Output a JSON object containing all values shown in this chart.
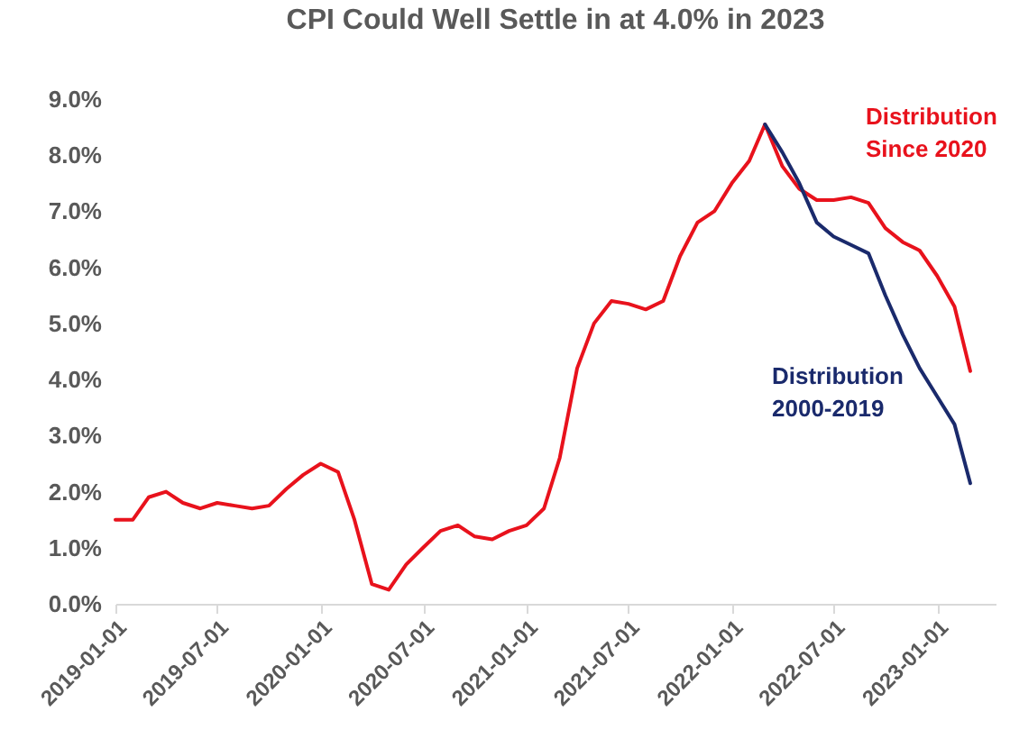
{
  "chart_data": {
    "type": "line",
    "title": "CPI Could Well Settle in at 4.0% in 2023",
    "series": [
      {
        "name": "Distribution Since 2020",
        "color": "#e8121c",
        "x": [
          "2019-01",
          "2019-02",
          "2019-03",
          "2019-04",
          "2019-05",
          "2019-06",
          "2019-07",
          "2019-08",
          "2019-09",
          "2019-10",
          "2019-11",
          "2019-12",
          "2020-01",
          "2020-02",
          "2020-03",
          "2020-04",
          "2020-05",
          "2020-06",
          "2020-07",
          "2020-08",
          "2020-09",
          "2020-10",
          "2020-11",
          "2020-12",
          "2021-01",
          "2021-02",
          "2021-03",
          "2021-04",
          "2021-05",
          "2021-06",
          "2021-07",
          "2021-08",
          "2021-09",
          "2021-10",
          "2021-11",
          "2021-12",
          "2022-01",
          "2022-02",
          "2022-03",
          "2022-04",
          "2022-05",
          "2022-06",
          "2022-07",
          "2022-08",
          "2022-09",
          "2022-10",
          "2022-11",
          "2022-12",
          "2023-01",
          "2023-02",
          "2023-03"
        ],
        "values": [
          1.5,
          1.5,
          1.9,
          2.0,
          1.8,
          1.7,
          1.8,
          1.75,
          1.7,
          1.75,
          2.05,
          2.3,
          2.5,
          2.35,
          1.5,
          0.35,
          0.25,
          0.7,
          1.0,
          1.3,
          1.4,
          1.2,
          1.15,
          1.3,
          1.4,
          1.7,
          2.6,
          4.2,
          5.0,
          5.4,
          5.35,
          5.25,
          5.4,
          6.2,
          6.8,
          7.0,
          7.5,
          7.9,
          8.55,
          7.8,
          7.4,
          7.2,
          7.2,
          7.25,
          7.15,
          6.7,
          6.45,
          6.3,
          5.85,
          5.3,
          4.15
        ]
      },
      {
        "name": "Distribution 2000-2019",
        "color": "#1a2a6c",
        "x": [
          "2022-03",
          "2022-04",
          "2022-05",
          "2022-06",
          "2022-07",
          "2022-08",
          "2022-09",
          "2022-10",
          "2022-11",
          "2022-12",
          "2023-01",
          "2023-02",
          "2023-03"
        ],
        "values": [
          8.55,
          8.05,
          7.5,
          6.8,
          6.55,
          6.4,
          6.25,
          5.5,
          4.8,
          4.2,
          3.7,
          3.2,
          2.15
        ]
      }
    ],
    "xlim": [
      "2019-01-01",
      "2023-04-15"
    ],
    "xticks": [
      "2019-01-01",
      "2019-07-01",
      "2020-01-01",
      "2020-07-01",
      "2021-01-01",
      "2021-07-01",
      "2022-01-01",
      "2022-07-01",
      "2023-01-01"
    ],
    "ylim": [
      0,
      9
    ],
    "yticks": [
      {
        "value": 0,
        "label": "0.0%"
      },
      {
        "value": 1,
        "label": "1.0%"
      },
      {
        "value": 2,
        "label": "2.0%"
      },
      {
        "value": 3,
        "label": "3.0%"
      },
      {
        "value": 4,
        "label": "4.0%"
      },
      {
        "value": 5,
        "label": "5.0%"
      },
      {
        "value": 6,
        "label": "6.0%"
      },
      {
        "value": 7,
        "label": "7.0%"
      },
      {
        "value": 8,
        "label": "8.0%"
      },
      {
        "value": 9,
        "label": "9.0%"
      }
    ],
    "grid": false,
    "legend": false
  }
}
